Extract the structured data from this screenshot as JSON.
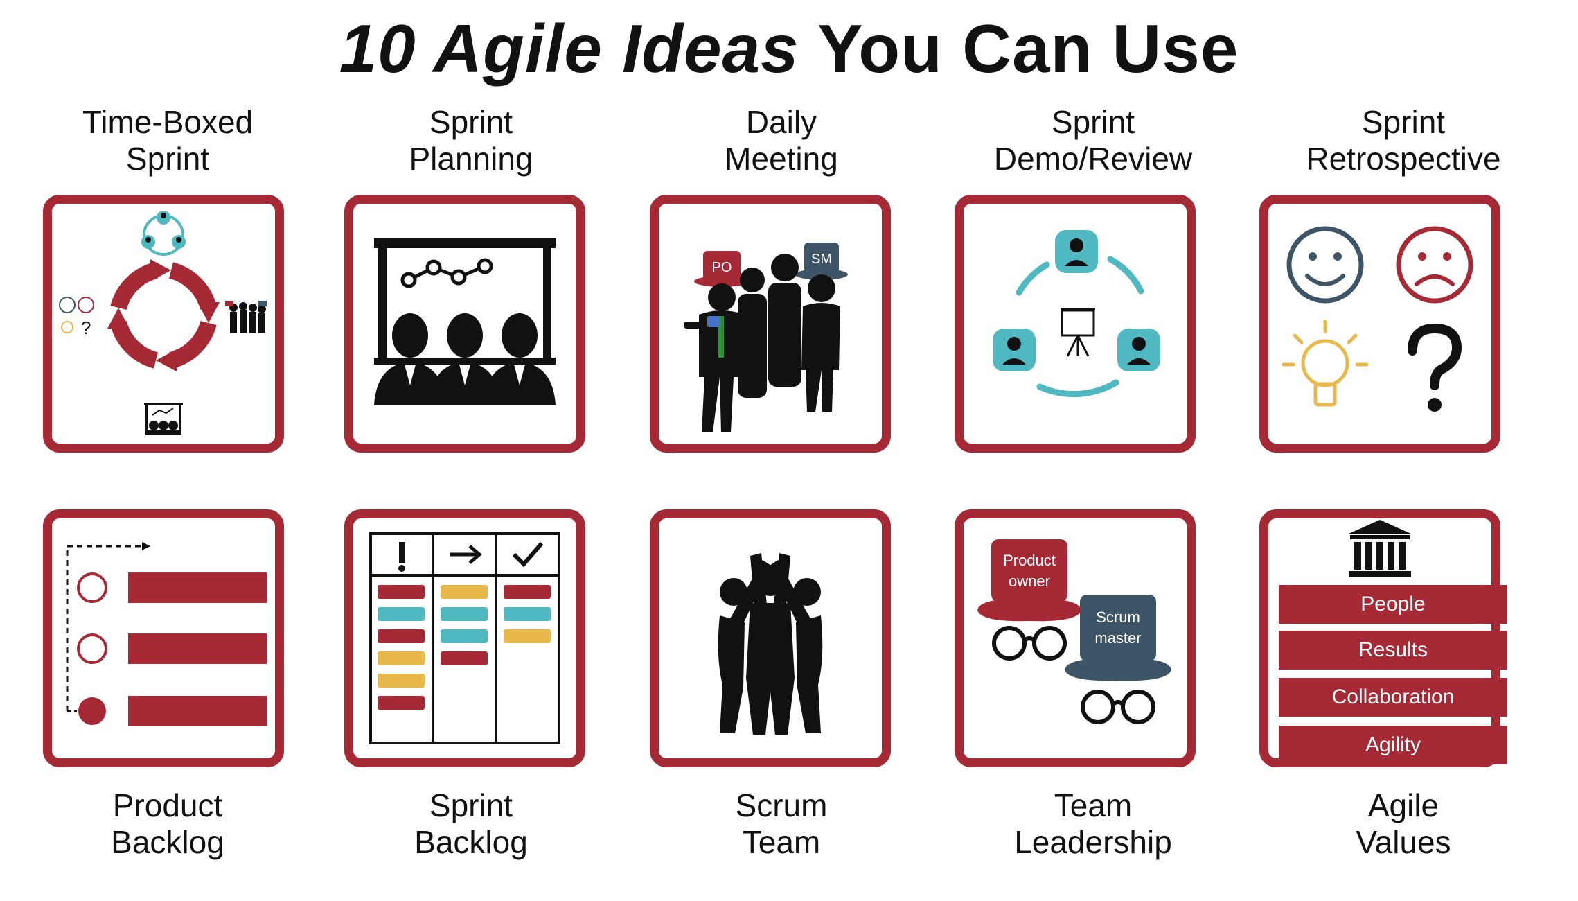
{
  "title": {
    "part1": "10 Agile Ideas",
    "part2": "You Can Use"
  },
  "top_labels": [
    {
      "line1": "Time-Boxed",
      "line2": "Sprint"
    },
    {
      "line1": "Sprint",
      "line2": "Planning"
    },
    {
      "line1": "Daily",
      "line2": "Meeting"
    },
    {
      "line1": "Sprint",
      "line2": "Demo/Review"
    },
    {
      "line1": "Sprint",
      "line2": "Retrospective"
    }
  ],
  "bottom_labels": [
    {
      "line1": "Product",
      "line2": "Backlog"
    },
    {
      "line1": "Sprint",
      "line2": "Backlog"
    },
    {
      "line1": "Scrum",
      "line2": "Team"
    },
    {
      "line1": "Team",
      "line2": "Leadership"
    },
    {
      "line1": "Agile",
      "line2": "Values"
    }
  ],
  "hats": {
    "po_short": "PO",
    "sm_short": "SM",
    "po_line1": "Product",
    "po_line2": "owner",
    "sm_line1": "Scrum",
    "sm_line2": "master"
  },
  "agile_values": [
    "People",
    "Results",
    "Collaboration",
    "Agility"
  ],
  "colors": {
    "accent": "#a52a36",
    "teal": "#4fb8c0",
    "yellow": "#e8b94a",
    "slate": "#3d5566",
    "black": "#111111"
  },
  "icons": [
    "sprint-cycle-icon",
    "planning-board-icon",
    "daily-meeting-icon",
    "demo-review-icon",
    "retrospective-icon",
    "product-backlog-icon",
    "kanban-board-icon",
    "scrum-team-icon",
    "leadership-hats-icon",
    "agile-values-icon"
  ]
}
